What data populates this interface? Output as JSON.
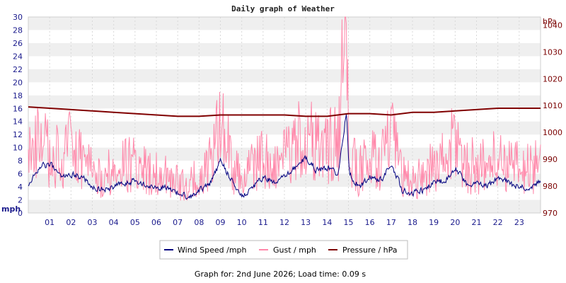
{
  "chart_data": {
    "type": "line",
    "title": "Daily graph of Weather",
    "footer": "Graph for: 2nd June 2026; Load time: 0.09 s",
    "y_left": {
      "unit": "mph",
      "range": [
        0,
        30
      ],
      "ticks": [
        "0",
        "2",
        "4",
        "6",
        "8",
        "10",
        "12",
        "14",
        "16",
        "18",
        "20",
        "22",
        "24",
        "26",
        "28",
        "30"
      ]
    },
    "y_right": {
      "unit": "hPa",
      "range": [
        970,
        1043
      ],
      "ticks": [
        "970",
        "980",
        "990",
        "1000",
        "1010",
        "1020",
        "1030",
        "1040"
      ]
    },
    "x": {
      "range": [
        0,
        24
      ],
      "ticks": [
        "01",
        "02",
        "03",
        "04",
        "05",
        "06",
        "07",
        "08",
        "09",
        "10",
        "11",
        "12",
        "13",
        "14",
        "15",
        "16",
        "17",
        "18",
        "19",
        "20",
        "21",
        "22",
        "23"
      ]
    },
    "grid": "horizontal alternating bands, dashed vertical lines",
    "legend_position": "bottom-center",
    "series": [
      {
        "name": "Wind Speed /mph",
        "axis": "left",
        "color": "#000080",
        "x": [
          0,
          0.5,
          1,
          1.5,
          2,
          2.5,
          3,
          3.5,
          4,
          4.5,
          5,
          5.5,
          6,
          6.5,
          7,
          7.5,
          8,
          8.5,
          9,
          9.5,
          10,
          10.5,
          11,
          11.5,
          12,
          12.5,
          13,
          13.5,
          14,
          14.5,
          14.9,
          15,
          15.5,
          16,
          16.5,
          17,
          17.5,
          18,
          18.5,
          19,
          19.5,
          20,
          20.5,
          21,
          21.5,
          22,
          22.5,
          23,
          23.5,
          24
        ],
        "values": [
          4.5,
          7.0,
          7.5,
          5.5,
          6.0,
          5.5,
          4.0,
          3.5,
          4.0,
          4.5,
          5.0,
          4.0,
          4.0,
          4.0,
          3.0,
          2.5,
          3.5,
          4.5,
          8.0,
          5.0,
          2.5,
          4.0,
          5.5,
          4.5,
          5.5,
          7.0,
          8.5,
          6.5,
          7.0,
          6.0,
          16.0,
          6.0,
          4.0,
          5.5,
          5.0,
          7.5,
          3.5,
          3.0,
          3.5,
          4.5,
          5.0,
          7.0,
          4.5,
          4.5,
          4.0,
          5.5,
          4.5,
          4.0,
          4.0,
          5.0
        ]
      },
      {
        "name": "Gust / mph",
        "axis": "left",
        "color": "#ff88aa",
        "x": [
          0,
          0.5,
          1,
          1.5,
          2,
          2.5,
          3,
          3.5,
          4,
          4.5,
          5,
          5.5,
          6,
          6.5,
          7,
          7.5,
          8,
          8.5,
          9,
          9.5,
          10,
          10.5,
          11,
          11.5,
          12,
          12.5,
          13,
          13.5,
          14,
          14.5,
          14.9,
          15,
          15.5,
          16,
          16.5,
          17,
          17.5,
          18,
          18.5,
          19,
          19.5,
          20,
          20.5,
          21,
          21.5,
          22,
          22.5,
          23,
          23.5,
          24
        ],
        "values": [
          9.0,
          12.0,
          10.0,
          9.0,
          11.0,
          9.0,
          7.0,
          6.0,
          7.5,
          8.0,
          8.5,
          7.0,
          6.5,
          6.0,
          5.0,
          4.5,
          6.5,
          9.0,
          14.0,
          9.0,
          5.0,
          7.5,
          9.5,
          8.0,
          9.5,
          11.5,
          13.0,
          11.0,
          11.5,
          11.5,
          30.0,
          10.0,
          7.0,
          9.0,
          9.0,
          13.0,
          6.5,
          5.0,
          6.5,
          8.0,
          9.0,
          12.5,
          8.0,
          8.0,
          8.0,
          9.5,
          8.0,
          7.5,
          7.5,
          9.0
        ]
      },
      {
        "name": "Pressure / hPa",
        "axis": "right",
        "color": "#800000",
        "x": [
          0,
          1,
          2,
          3,
          4,
          5,
          6,
          7,
          8,
          9,
          10,
          11,
          12,
          13,
          14,
          15,
          16,
          17,
          18,
          19,
          20,
          21,
          22,
          23,
          24
        ],
        "values": [
          1009.5,
          1009.0,
          1008.5,
          1008.0,
          1007.5,
          1007.0,
          1006.5,
          1006.0,
          1006.0,
          1006.5,
          1006.5,
          1006.5,
          1006.5,
          1006.0,
          1006.0,
          1007.0,
          1007.0,
          1006.5,
          1007.5,
          1007.5,
          1008.0,
          1008.5,
          1009.0,
          1009.0,
          1009.0
        ]
      }
    ]
  }
}
